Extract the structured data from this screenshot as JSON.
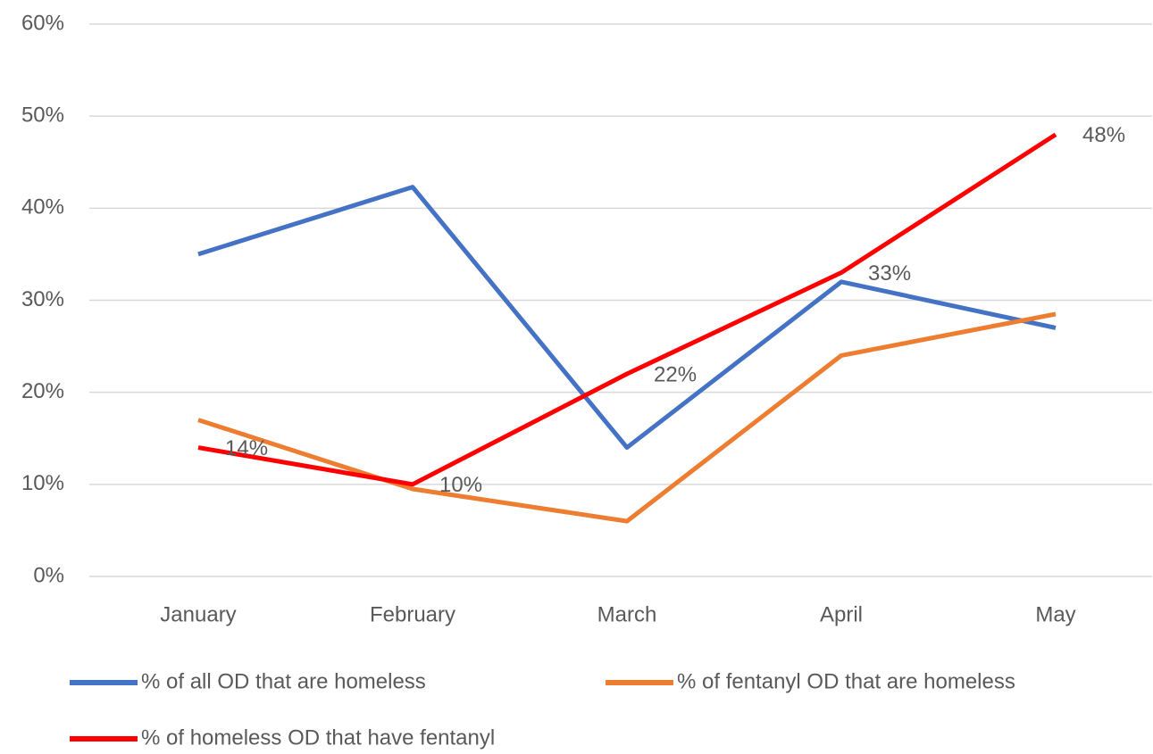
{
  "chart_data": {
    "type": "line",
    "categories": [
      "January",
      "February",
      "March",
      "April",
      "May"
    ],
    "series": [
      {
        "name": "% of all OD that are homeless",
        "color": "#4472c4",
        "values": [
          35,
          42.3,
          14,
          32,
          27
        ]
      },
      {
        "name": "% of fentanyl OD that are homeless",
        "color": "#ed7d31",
        "values": [
          17,
          9.5,
          6,
          24,
          28.5
        ]
      },
      {
        "name": "% of homeless OD that have fentanyl",
        "color": "#ff0000",
        "values": [
          14,
          10,
          22,
          33,
          48
        ],
        "value_labels": [
          "14%",
          "10%",
          "22%",
          "33%",
          "48%"
        ]
      }
    ],
    "ylim": [
      0,
      60
    ],
    "yticks": [
      {
        "value": 0,
        "label": "0%"
      },
      {
        "value": 10,
        "label": "10%"
      },
      {
        "value": 20,
        "label": "20%"
      },
      {
        "value": 30,
        "label": "30%"
      },
      {
        "value": 40,
        "label": "40%"
      },
      {
        "value": 50,
        "label": "50%"
      },
      {
        "value": 60,
        "label": "60%"
      }
    ],
    "grid": true,
    "legend": "bottom"
  }
}
